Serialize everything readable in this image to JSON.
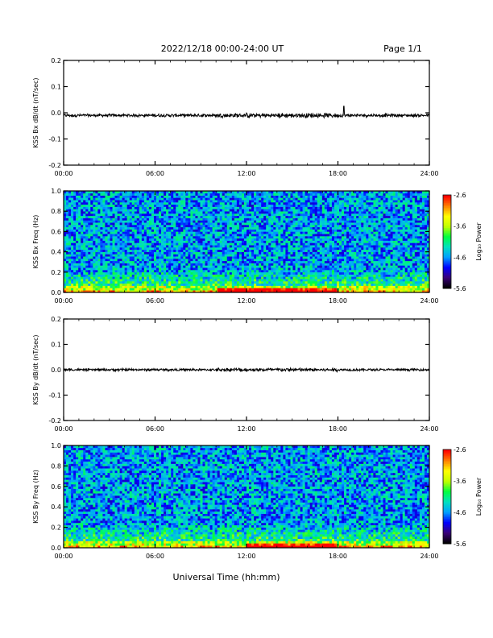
{
  "header": {
    "title": "2022/12/18  00:00-24:00 UT",
    "page": "Page 1/1"
  },
  "footer": {
    "xlabel": "Universal Time (hh:mm)"
  },
  "x_ticks": [
    "00:00",
    "06:00",
    "12:00",
    "18:00",
    "24:00"
  ],
  "colors": {
    "trace": "#000000",
    "colormap": [
      "#000000",
      "#3a0078",
      "#0000ff",
      "#00a0ff",
      "#00e0c0",
      "#00ff40",
      "#c0ff00",
      "#ffff00",
      "#ff8000",
      "#ff0000"
    ]
  },
  "chart_data": [
    {
      "type": "line",
      "ylabel": "KSS Bx dB/dt (nT/sec)",
      "x": [
        0,
        24
      ],
      "xlim": [
        0,
        24
      ],
      "ylim": [
        -0.2,
        0.2
      ],
      "yticks": [
        "0.2",
        "0.1",
        "0.0",
        "-0.1",
        "-0.2"
      ],
      "baseline": -0.01,
      "noise_amplitude": 0.005,
      "spikes": [
        {
          "x": 18.4,
          "y": 0.025
        }
      ],
      "series": [
        {
          "values": [
            -0.01,
            -0.01
          ]
        }
      ]
    },
    {
      "type": "heatmap",
      "ylabel": "KSS Bx Freq (Hz)",
      "xlim": [
        0,
        24
      ],
      "ylim": [
        0,
        1.0
      ],
      "yticks": [
        "1.0",
        "0.8",
        "0.6",
        "0.4",
        "0.2",
        "0.0"
      ],
      "colorbar": {
        "label": "Log₁₀ Power",
        "ticks": [
          "-2.6",
          "-3.6",
          "-4.6",
          "-5.6"
        ],
        "range": [
          -5.6,
          -2.6
        ]
      },
      "low_freq_enhancement_hours": [
        10,
        18
      ]
    },
    {
      "type": "line",
      "ylabel": "KSS By dB/dt (nT/sec)",
      "x": [
        0,
        24
      ],
      "xlim": [
        0,
        24
      ],
      "ylim": [
        -0.2,
        0.2
      ],
      "yticks": [
        "0.2",
        "0.1",
        "0.0",
        "-0.1",
        "-0.2"
      ],
      "baseline": 0.0,
      "noise_amplitude": 0.004,
      "spikes": [],
      "series": [
        {
          "values": [
            0.0,
            0.0
          ]
        }
      ]
    },
    {
      "type": "heatmap",
      "ylabel": "KSS By Freq (Hz)",
      "xlim": [
        0,
        24
      ],
      "ylim": [
        0,
        1.0
      ],
      "yticks": [
        "1.0",
        "0.8",
        "0.6",
        "0.4",
        "0.2",
        "0.0"
      ],
      "colorbar": {
        "label": "Log₁₀ Power",
        "ticks": [
          "-2.6",
          "-3.6",
          "-4.6",
          "-5.6"
        ],
        "range": [
          -5.6,
          -2.6
        ]
      },
      "low_freq_enhancement_hours": [
        12,
        18
      ]
    }
  ]
}
